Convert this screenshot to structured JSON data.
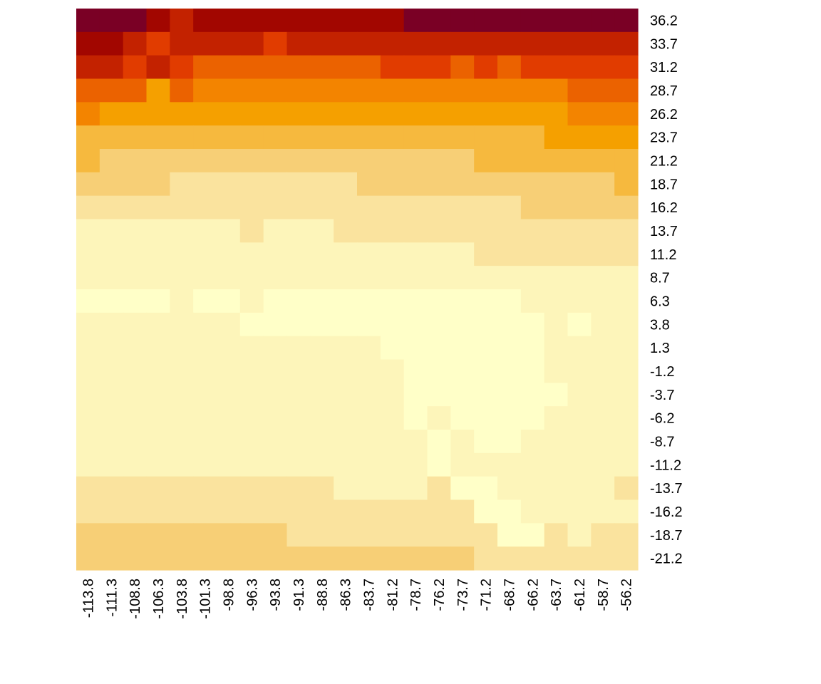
{
  "chart_data": {
    "type": "heatmap",
    "title": "",
    "xlabel": "",
    "ylabel": "",
    "x_labels": [
      "-113.8",
      "-111.3",
      "-108.8",
      "-106.3",
      "-103.8",
      "-101.3",
      "-98.8",
      "-96.3",
      "-93.8",
      "-91.3",
      "-88.8",
      "-86.3",
      "-83.7",
      "-81.2",
      "-78.7",
      "-76.2",
      "-73.7",
      "-71.2",
      "-68.7",
      "-66.2",
      "-63.7",
      "-61.2",
      "-58.7",
      "-56.2"
    ],
    "y_labels": [
      "36.2",
      "33.7",
      "31.2",
      "28.7",
      "26.2",
      "23.7",
      "21.2",
      "18.7",
      "16.2",
      "13.7",
      "11.2",
      "8.7",
      "6.3",
      "3.8",
      "1.3",
      "-1.2",
      "-3.7",
      "-6.2",
      "-8.7",
      "-11.2",
      "-13.7",
      "-16.2",
      "-18.7",
      "-21.2"
    ],
    "palette": [
      "#FFFFC8",
      "#FDF5BA",
      "#FAE39E",
      "#F7CF76",
      "#F6B93E",
      "#F5A000",
      "#F38400",
      "#EB6200",
      "#E13C00",
      "#C32200",
      "#A20600",
      "#7A0025"
    ],
    "levels": [
      [
        11,
        11,
        11,
        10,
        9,
        10,
        10,
        10,
        10,
        10,
        10,
        10,
        10,
        10,
        11,
        11,
        11,
        11,
        11,
        11,
        11,
        11,
        11,
        11
      ],
      [
        10,
        10,
        9,
        8,
        9,
        9,
        9,
        9,
        8,
        9,
        9,
        9,
        9,
        9,
        9,
        9,
        9,
        9,
        9,
        9,
        9,
        9,
        9,
        9
      ],
      [
        9,
        9,
        8,
        9,
        8,
        7,
        7,
        7,
        7,
        7,
        7,
        7,
        7,
        8,
        8,
        8,
        7,
        8,
        7,
        8,
        8,
        8,
        8,
        8
      ],
      [
        7,
        7,
        7,
        5,
        7,
        6,
        6,
        6,
        6,
        6,
        6,
        6,
        6,
        6,
        6,
        6,
        6,
        6,
        6,
        6,
        6,
        7,
        7,
        7
      ],
      [
        6,
        5,
        5,
        5,
        5,
        5,
        5,
        5,
        5,
        5,
        5,
        5,
        5,
        5,
        5,
        5,
        5,
        5,
        5,
        5,
        5,
        6,
        6,
        6
      ],
      [
        4,
        4,
        4,
        4,
        4,
        4,
        4,
        4,
        4,
        4,
        4,
        4,
        4,
        4,
        4,
        4,
        4,
        4,
        4,
        4,
        5,
        5,
        5,
        5
      ],
      [
        4,
        3,
        3,
        3,
        3,
        3,
        3,
        3,
        3,
        3,
        3,
        3,
        3,
        3,
        3,
        3,
        3,
        4,
        4,
        4,
        4,
        4,
        4,
        4
      ],
      [
        3,
        3,
        3,
        3,
        2,
        2,
        2,
        2,
        2,
        2,
        2,
        2,
        3,
        3,
        3,
        3,
        3,
        3,
        3,
        3,
        3,
        3,
        3,
        4
      ],
      [
        2,
        2,
        2,
        2,
        2,
        2,
        2,
        2,
        2,
        2,
        2,
        2,
        2,
        2,
        2,
        2,
        2,
        2,
        2,
        3,
        3,
        3,
        3,
        3
      ],
      [
        1,
        1,
        1,
        1,
        1,
        1,
        1,
        2,
        1,
        1,
        1,
        2,
        2,
        2,
        2,
        2,
        2,
        2,
        2,
        2,
        2,
        2,
        2,
        2
      ],
      [
        1,
        1,
        1,
        1,
        1,
        1,
        1,
        1,
        1,
        1,
        1,
        1,
        1,
        1,
        1,
        1,
        1,
        2,
        2,
        2,
        2,
        2,
        2,
        2
      ],
      [
        1,
        1,
        1,
        1,
        1,
        1,
        1,
        1,
        1,
        1,
        1,
        1,
        1,
        1,
        1,
        1,
        1,
        1,
        1,
        1,
        1,
        1,
        1,
        1
      ],
      [
        0,
        0,
        0,
        0,
        1,
        0,
        0,
        1,
        0,
        0,
        0,
        0,
        0,
        0,
        0,
        0,
        0,
        0,
        0,
        1,
        1,
        1,
        1,
        1
      ],
      [
        1,
        1,
        1,
        1,
        1,
        1,
        1,
        0,
        0,
        0,
        0,
        0,
        0,
        0,
        0,
        0,
        0,
        0,
        0,
        0,
        1,
        0,
        1,
        1
      ],
      [
        1,
        1,
        1,
        1,
        1,
        1,
        1,
        1,
        1,
        1,
        1,
        1,
        1,
        0,
        0,
        0,
        0,
        0,
        0,
        0,
        1,
        1,
        1,
        1
      ],
      [
        1,
        1,
        1,
        1,
        1,
        1,
        1,
        1,
        1,
        1,
        1,
        1,
        1,
        1,
        0,
        0,
        0,
        0,
        0,
        0,
        1,
        1,
        1,
        1
      ],
      [
        1,
        1,
        1,
        1,
        1,
        1,
        1,
        1,
        1,
        1,
        1,
        1,
        1,
        1,
        0,
        0,
        0,
        0,
        0,
        0,
        0,
        1,
        1,
        1
      ],
      [
        1,
        1,
        1,
        1,
        1,
        1,
        1,
        1,
        1,
        1,
        1,
        1,
        1,
        1,
        0,
        1,
        0,
        0,
        0,
        0,
        1,
        1,
        1,
        1
      ],
      [
        1,
        1,
        1,
        1,
        1,
        1,
        1,
        1,
        1,
        1,
        1,
        1,
        1,
        1,
        1,
        0,
        1,
        0,
        0,
        1,
        1,
        1,
        1,
        1
      ],
      [
        1,
        1,
        1,
        1,
        1,
        1,
        1,
        1,
        1,
        1,
        1,
        1,
        1,
        1,
        1,
        0,
        1,
        1,
        1,
        1,
        1,
        1,
        1,
        1
      ],
      [
        2,
        2,
        2,
        2,
        2,
        2,
        2,
        2,
        2,
        2,
        2,
        1,
        1,
        1,
        1,
        2,
        0,
        0,
        1,
        1,
        1,
        1,
        1,
        2
      ],
      [
        2,
        2,
        2,
        2,
        2,
        2,
        2,
        2,
        2,
        2,
        2,
        2,
        2,
        2,
        2,
        2,
        2,
        0,
        0,
        1,
        1,
        1,
        1,
        1
      ],
      [
        3,
        3,
        3,
        3,
        3,
        3,
        3,
        3,
        3,
        2,
        2,
        2,
        2,
        2,
        2,
        2,
        2,
        2,
        0,
        0,
        2,
        1,
        2,
        2
      ],
      [
        3,
        3,
        3,
        3,
        3,
        3,
        3,
        3,
        3,
        3,
        3,
        3,
        3,
        3,
        3,
        3,
        3,
        2,
        2,
        2,
        2,
        2,
        2,
        2
      ]
    ],
    "legend": "none",
    "grid": false
  }
}
